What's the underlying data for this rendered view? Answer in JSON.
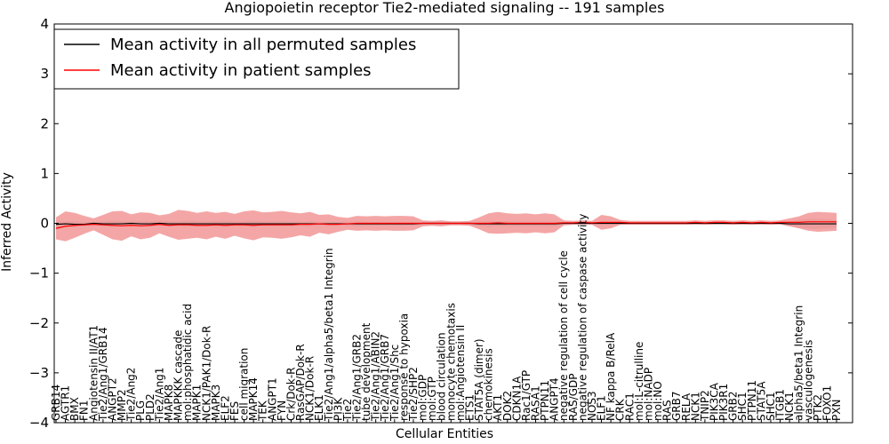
{
  "chart_data": {
    "type": "line",
    "title": "Angiopoietin receptor Tie2-mediated signaling -- 191 samples",
    "xlabel": "Cellular Entities",
    "ylabel": "Inferred Activity",
    "ylim": [
      -4,
      4
    ],
    "yticks": [
      -4,
      -3,
      -2,
      -1,
      0,
      1,
      2,
      3,
      4
    ],
    "ytick_labels": [
      "−4",
      "−3",
      "−2",
      "−1",
      "0",
      "1",
      "2",
      "3",
      "4"
    ],
    "grid": false,
    "legend_position": "top-left",
    "colors": {
      "permuted": "#000000",
      "patient": "#ff0000",
      "patient_band": "#f08080",
      "permuted_band": "#c8c8c8"
    },
    "categories": [
      "GRB14",
      "AGTR1",
      "BMX",
      "FN1",
      "Angiotensin II/AT1",
      "Tie2/Ang1/GRB14",
      "ANGPT2",
      "MMP2",
      "Tie2/Ang2",
      "PLG",
      "PLD2",
      "Tie2/Ang1",
      "MAPK8",
      "MAPKKK cascade",
      "mol:phosphatidic acid",
      "MAPK1",
      "NCK1/PAK1/Dok-R",
      "MAPK3",
      "ELF2",
      "FES",
      "cell migration",
      "MAPK14",
      "TEK",
      "ANGPT1",
      "FYN",
      "Crk/Dok-R",
      "RasGAP/Dok-R",
      "NCK1/Dok-R",
      "ELK1",
      "Tie2/Ang1/alpha5/beta1 Integrin",
      "PI3K",
      "Tie2",
      "Tie2/Ang1/GRB2",
      "tube development",
      "Tie2/Ang1/ABIN2",
      "Tie2/Ang1/GRB7",
      "Tie2/Ang1/Shc",
      "response to hypoxia",
      "Tie2/SHP2",
      "mol:GDP",
      "mol:GTP",
      "blood circulation",
      "monocyte chemotaxis",
      "mol:Angiotensin II",
      "ETS1",
      "STAT5A (dimer)",
      "chemokinesis",
      "AKT1",
      "DOK2",
      "CDKN1A",
      "Rac1/GTP",
      "RASA1",
      "PTPN11",
      "ANGPT4",
      "negative regulation of cell cycle",
      "RAS/GDP",
      "negative regulation of caspase activity",
      "NOS3",
      "ELF1",
      "NF kappa B/RelA",
      "CRK",
      "RAC1",
      "mol:L-citrulline",
      "mol:NADP",
      "mol:NO",
      "RAS",
      "GRB7",
      "RELA",
      "NCK1",
      "TNIP2",
      "PIK3CA",
      "PIK3R1",
      "GRB2",
      "SHC1",
      "PTPN11",
      "STAT5A",
      "SHC1",
      "ITGB1",
      "NCK1",
      "alpha5/beta1 Integrin",
      "vasculogenesis",
      "PTK2",
      "FOXO1",
      "PXN"
    ],
    "series": [
      {
        "name": "Mean activity in all permuted samples",
        "color": "#000000",
        "values": [
          -0.02,
          -0.01,
          -0.02,
          -0.02,
          0.0,
          -0.01,
          -0.01,
          -0.01,
          0.0,
          -0.01,
          -0.01,
          0.0,
          -0.01,
          -0.01,
          -0.01,
          -0.01,
          -0.01,
          -0.01,
          -0.01,
          -0.01,
          -0.01,
          -0.01,
          -0.01,
          -0.01,
          -0.01,
          -0.01,
          -0.01,
          -0.01,
          -0.01,
          -0.01,
          -0.01,
          -0.01,
          -0.01,
          -0.01,
          -0.01,
          -0.01,
          -0.01,
          -0.01,
          -0.01,
          0.0,
          0.0,
          0.0,
          0.0,
          0.0,
          0.0,
          -0.01,
          -0.01,
          -0.01,
          -0.01,
          -0.01,
          -0.01,
          -0.01,
          -0.01,
          -0.01,
          0.0,
          0.0,
          0.0,
          0.0,
          0.0,
          0.0,
          0.0,
          0.0,
          0.0,
          0.0,
          0.0,
          0.0,
          0.0,
          0.0,
          0.0,
          0.0,
          0.0,
          0.0,
          0.0,
          0.0,
          0.0,
          0.0,
          0.0,
          0.0,
          -0.01,
          -0.01,
          -0.01,
          -0.01,
          -0.01,
          -0.01
        ],
        "band": [
          0.06,
          0.05,
          0.06,
          0.04,
          0.03,
          0.05,
          0.06,
          0.05,
          0.04,
          0.05,
          0.05,
          0.05,
          0.05,
          0.05,
          0.06,
          0.05,
          0.05,
          0.06,
          0.06,
          0.05,
          0.05,
          0.06,
          0.05,
          0.05,
          0.05,
          0.05,
          0.04,
          0.05,
          0.04,
          0.04,
          0.04,
          0.04,
          0.05,
          0.04,
          0.04,
          0.04,
          0.04,
          0.04,
          0.04,
          0.03,
          0.03,
          0.03,
          0.02,
          0.02,
          0.03,
          0.05,
          0.06,
          0.05,
          0.05,
          0.05,
          0.05,
          0.05,
          0.05,
          0.05,
          0.03,
          0.02,
          0.02,
          0.02,
          0.02,
          0.02,
          0.02,
          0.02,
          0.02,
          0.02,
          0.02,
          0.02,
          0.02,
          0.02,
          0.02,
          0.02,
          0.02,
          0.02,
          0.02,
          0.02,
          0.02,
          0.02,
          0.02,
          0.02,
          0.05,
          0.08,
          0.1,
          0.1,
          0.09,
          0.08
        ]
      },
      {
        "name": "Mean activity in patient samples",
        "color": "#ff0000",
        "values": [
          -0.1,
          -0.06,
          -0.04,
          -0.03,
          -0.02,
          -0.03,
          -0.04,
          -0.05,
          -0.04,
          -0.05,
          -0.04,
          -0.02,
          -0.04,
          -0.03,
          -0.03,
          -0.04,
          -0.04,
          -0.03,
          -0.04,
          -0.03,
          -0.03,
          -0.04,
          -0.03,
          -0.03,
          -0.03,
          -0.03,
          -0.02,
          -0.02,
          -0.01,
          -0.02,
          -0.02,
          -0.01,
          0.0,
          0.0,
          0.0,
          0.0,
          0.0,
          0.0,
          0.0,
          0.0,
          0.0,
          0.0,
          0.0,
          0.0,
          0.0,
          0.0,
          0.0,
          0.01,
          0.0,
          0.0,
          0.0,
          0.0,
          0.0,
          0.0,
          0.01,
          0.01,
          0.02,
          0.01,
          0.02,
          0.02,
          0.02,
          0.01,
          0.01,
          0.01,
          0.01,
          0.01,
          0.01,
          0.01,
          0.02,
          0.01,
          0.02,
          0.02,
          0.01,
          0.02,
          0.01,
          0.02,
          0.01,
          0.02,
          0.02,
          0.02,
          0.03,
          0.03,
          0.03,
          0.03
        ],
        "band": [
          0.22,
          0.3,
          0.25,
          0.18,
          0.12,
          0.2,
          0.28,
          0.3,
          0.22,
          0.27,
          0.25,
          0.18,
          0.23,
          0.3,
          0.28,
          0.25,
          0.28,
          0.24,
          0.27,
          0.22,
          0.27,
          0.3,
          0.25,
          0.26,
          0.28,
          0.25,
          0.22,
          0.25,
          0.18,
          0.2,
          0.15,
          0.12,
          0.15,
          0.14,
          0.15,
          0.14,
          0.15,
          0.15,
          0.14,
          0.06,
          0.05,
          0.06,
          0.04,
          0.04,
          0.05,
          0.12,
          0.2,
          0.22,
          0.2,
          0.19,
          0.2,
          0.18,
          0.2,
          0.18,
          0.05,
          0.04,
          0.04,
          0.04,
          0.15,
          0.12,
          0.05,
          0.04,
          0.04,
          0.04,
          0.04,
          0.04,
          0.04,
          0.04,
          0.04,
          0.04,
          0.04,
          0.04,
          0.04,
          0.04,
          0.04,
          0.04,
          0.04,
          0.04,
          0.08,
          0.12,
          0.18,
          0.2,
          0.19,
          0.18
        ]
      }
    ]
  }
}
